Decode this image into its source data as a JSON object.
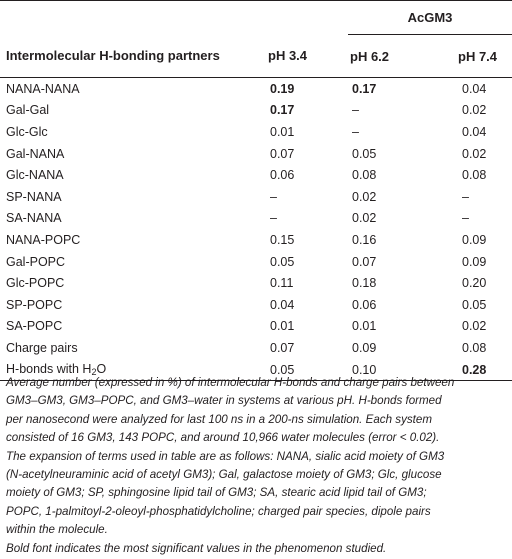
{
  "table": {
    "group_header": "AcGM3",
    "columns": [
      "Intermolecular H-bonding partners",
      "pH 3.4",
      "pH 6.2",
      "pH 7.4"
    ],
    "rows": [
      {
        "label": "NANA-NANA",
        "v": [
          "0.19",
          "0.17",
          "0.04"
        ],
        "bold": [
          true,
          true,
          false
        ]
      },
      {
        "label": "Gal-Gal",
        "v": [
          "0.17",
          "–",
          "0.02"
        ],
        "bold": [
          true,
          false,
          false
        ]
      },
      {
        "label": "Glc-Glc",
        "v": [
          "0.01",
          "–",
          "0.04"
        ],
        "bold": [
          false,
          false,
          false
        ]
      },
      {
        "label": "Gal-NANA",
        "v": [
          "0.07",
          "0.05",
          "0.02"
        ],
        "bold": [
          false,
          false,
          false
        ]
      },
      {
        "label": "Glc-NANA",
        "v": [
          "0.06",
          "0.08",
          "0.08"
        ],
        "bold": [
          false,
          false,
          false
        ]
      },
      {
        "label": "SP-NANA",
        "v": [
          "–",
          "0.02",
          "–"
        ],
        "bold": [
          false,
          false,
          false
        ]
      },
      {
        "label": "SA-NANA",
        "v": [
          "–",
          "0.02",
          "–"
        ],
        "bold": [
          false,
          false,
          false
        ]
      },
      {
        "label": "NANA-POPC",
        "v": [
          "0.15",
          "0.16",
          "0.09"
        ],
        "bold": [
          false,
          false,
          false
        ]
      },
      {
        "label": "Gal-POPC",
        "v": [
          "0.05",
          "0.07",
          "0.09"
        ],
        "bold": [
          false,
          false,
          false
        ]
      },
      {
        "label": "Glc-POPC",
        "v": [
          "0.11",
          "0.18",
          "0.20"
        ],
        "bold": [
          false,
          false,
          false
        ]
      },
      {
        "label": "SP-POPC",
        "v": [
          "0.04",
          "0.06",
          "0.05"
        ],
        "bold": [
          false,
          false,
          false
        ]
      },
      {
        "label": "SA-POPC",
        "v": [
          "0.01",
          "0.01",
          "0.02"
        ],
        "bold": [
          false,
          false,
          false
        ]
      },
      {
        "label": "Charge pairs",
        "v": [
          "0.07",
          "0.09",
          "0.08"
        ],
        "bold": [
          false,
          false,
          false
        ]
      }
    ],
    "last_row": {
      "label_prefix": "H-bonds with H",
      "label_sub": "2",
      "label_suffix": "O",
      "v": [
        "0.05",
        "0.10",
        "0.28"
      ],
      "bold": [
        false,
        false,
        true
      ]
    }
  },
  "footnote": {
    "lines": [
      "Average number (expressed in %) of intermolecular H-bonds and charge pairs between",
      "GM3–GM3, GM3–POPC, and GM3–water in systems at various pH. H-bonds formed",
      "per nanosecond were analyzed for last 100 ns in a 200-ns simulation. Each system",
      "consisted of 16 GM3, 143 POPC, and around 10,966 water molecules (error < 0.02).",
      "The expansion of terms used in table are as follows: NANA, sialic acid moiety of GM3",
      "(N-acetylneuraminic acid of acetyl GM3); Gal, galactose moiety of GM3; Glc, glucose",
      "moiety of GM3; SP, sphingosine lipid tail of GM3; SA, stearic acid lipid tail of GM3;",
      "POPC, 1-palmitoyl-2-oleoyl-phosphatidylcholine; charged pair species, dipole pairs",
      "within the molecule.",
      "Bold font indicates the most significant values in the phenomenon studied."
    ]
  }
}
